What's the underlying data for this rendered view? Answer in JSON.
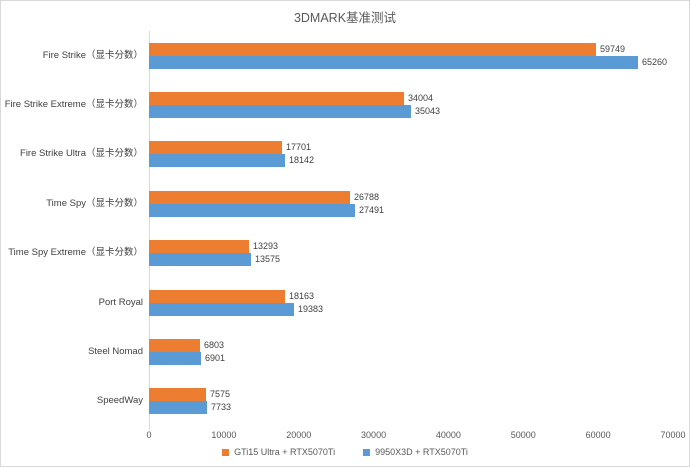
{
  "title": "3DMARK基准测试",
  "colors": {
    "series1": "#ED7D31",
    "series2": "#5B9BD5",
    "axis": "#D9D9D9",
    "axis_text": "#595959",
    "label_text": "#404040"
  },
  "chart_data": {
    "type": "bar",
    "orientation": "horizontal",
    "title": "3DMARK基准测试",
    "categories": [
      "Fire Strike（显卡分数）",
      "Fire Strike Extreme（显卡分数）",
      "Fire Strike Ultra（显卡分数）",
      "Time Spy（显卡分数）",
      "Time Spy Extreme（显卡分数）",
      "Port Royal",
      "Steel Nomad",
      "SpeedWay"
    ],
    "series": [
      {
        "name": "GTi15 Ultra + RTX5070Ti",
        "color": "#ED7D31",
        "values": [
          59749,
          34004,
          17701,
          26788,
          13293,
          18163,
          6803,
          7575
        ]
      },
      {
        "name": "9950X3D + RTX5070Ti",
        "color": "#5B9BD5",
        "values": [
          65260,
          35043,
          18142,
          27491,
          13575,
          19383,
          6901,
          7733
        ]
      }
    ],
    "xlim": [
      0,
      70000
    ],
    "xticks": [
      0,
      10000,
      20000,
      30000,
      40000,
      50000,
      60000,
      70000
    ],
    "grid": false,
    "legend_position": "bottom",
    "data_labels": true
  }
}
